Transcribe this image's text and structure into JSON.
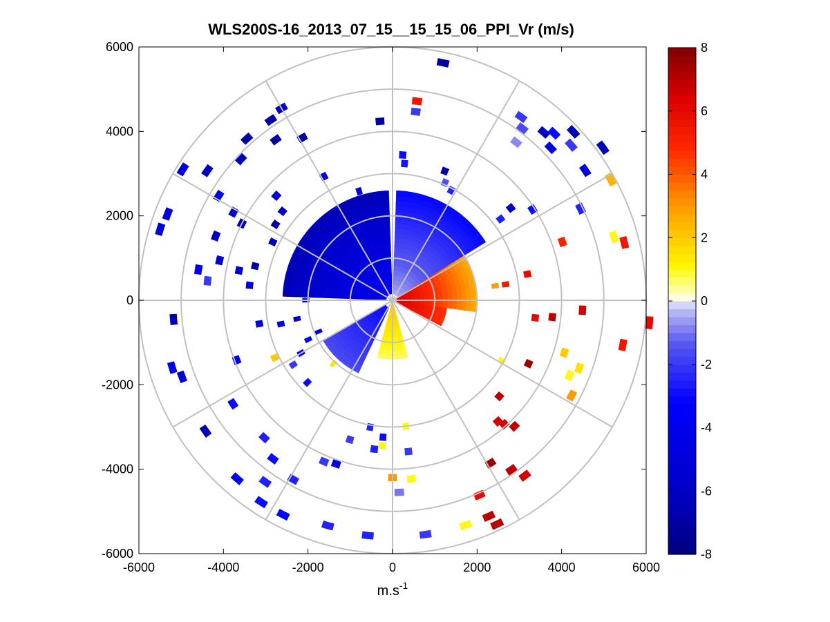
{
  "chart_data": {
    "type": "heatmap",
    "subtype": "polar-ppi",
    "title": "WLS200S-16_2013_07_15__15_15_06_PPI_Vr (m/s)",
    "xlabel": "m.s",
    "xlabel_superscript": "-1",
    "ylabel": "",
    "xlim": [
      -6000,
      6000
    ],
    "ylim": [
      -6000,
      6000
    ],
    "x_ticks": [
      "-6000",
      "-4000",
      "-2000",
      "0",
      "2000",
      "4000",
      "6000"
    ],
    "y_ticks": [
      "6000",
      "4000",
      "2000",
      "0",
      "-2000",
      "-4000",
      "-6000"
    ],
    "range_rings_m": [
      1000,
      2000,
      3000,
      4000,
      5000,
      6000
    ],
    "spokes_deg": [
      0,
      30,
      60,
      90,
      120,
      150,
      180,
      210,
      240,
      270,
      300,
      330
    ],
    "colorbar": {
      "range": [
        -8,
        8
      ],
      "ticks": [
        "8",
        "6",
        "4",
        "2",
        "0",
        "-2",
        "-4",
        "-6",
        "-8"
      ],
      "colormap": "blue-white-yellow-red"
    },
    "dense_sectors": [
      {
        "name": "west-northwest",
        "az_from": 272,
        "az_to": 358,
        "r_from": 150,
        "r_to": 2600,
        "v_outer": -6.5,
        "v_inner": -4.0
      },
      {
        "name": "north-northeast",
        "az_from": 2,
        "az_to": 58,
        "r_from": 150,
        "r_to": 2600,
        "v_outer": -3.2,
        "v_inner": -0.6
      },
      {
        "name": "east",
        "az_from": 58,
        "az_to": 98,
        "r_from": 100,
        "r_to": 2000,
        "v_outer": 2.5,
        "v_inner": 6.5
      },
      {
        "name": "east-southeast",
        "az_from": 98,
        "az_to": 118,
        "r_from": 100,
        "r_to": 1300,
        "v_outer": 4.5,
        "v_inner": 6.5
      },
      {
        "name": "south",
        "az_from": 165,
        "az_to": 195,
        "r_from": 100,
        "r_to": 1400,
        "v_outer": 0.6,
        "v_inner": 2.0
      },
      {
        "name": "southwest",
        "az_from": 205,
        "az_to": 240,
        "r_from": 200,
        "r_to": 1900,
        "v_outer": -1.6,
        "v_inner": -3.0
      }
    ],
    "range_gates": [
      {
        "az": 12,
        "r": 5750,
        "v": -7.0
      },
      {
        "az": 7,
        "r": 4750,
        "v": 5.5
      },
      {
        "az": 7,
        "r": 4500,
        "v": -2.0
      },
      {
        "az": 4,
        "r": 3450,
        "v": -3.0
      },
      {
        "az": 5,
        "r": 3250,
        "v": -2.8
      },
      {
        "az": -4,
        "r": 4250,
        "v": -7.0
      },
      {
        "az": 22,
        "r": 3300,
        "v": -7.0
      },
      {
        "az": 24,
        "r": 3050,
        "v": -1.5
      },
      {
        "az": 28,
        "r": 2950,
        "v": -2.5
      },
      {
        "az": 35,
        "r": 5300,
        "v": -2.0
      },
      {
        "az": 37,
        "r": 5100,
        "v": -1.6
      },
      {
        "az": 38,
        "r": 4750,
        "v": -0.8
      },
      {
        "az": 42,
        "r": 5350,
        "v": -6.0
      },
      {
        "az": 44,
        "r": 5500,
        "v": -3.0
      },
      {
        "az": 47,
        "r": 5850,
        "v": -6.5
      },
      {
        "az": 46,
        "r": 5200,
        "v": -5.0
      },
      {
        "az": 49,
        "r": 5600,
        "v": -2.0
      },
      {
        "az": 54,
        "r": 6150,
        "v": -6.5
      },
      {
        "az": 56,
        "r": 5500,
        "v": -5.0
      },
      {
        "az": 52,
        "r": 3550,
        "v": -6.0
      },
      {
        "az": 53,
        "r": 3200,
        "v": -2.5
      },
      {
        "az": 57,
        "r": 3950,
        "v": -3.0
      },
      {
        "az": 61,
        "r": 5900,
        "v": 2.5
      },
      {
        "az": 64,
        "r": 4950,
        "v": -2.5
      },
      {
        "az": 71,
        "r": 4250,
        "v": 5.0
      },
      {
        "az": 74,
        "r": 5450,
        "v": 1.0
      },
      {
        "az": 76,
        "r": 5650,
        "v": 5.5
      },
      {
        "az": 79,
        "r": 3250,
        "v": 6.0
      },
      {
        "az": 82,
        "r": 2700,
        "v": 5.5
      },
      {
        "az": 82,
        "r": 2450,
        "v": 3.0
      },
      {
        "az": 93,
        "r": 4500,
        "v": 6.5
      },
      {
        "az": 96,
        "r": 3800,
        "v": 7.0
      },
      {
        "az": 97,
        "r": 3400,
        "v": 6.0
      },
      {
        "az": 95,
        "r": 6100,
        "v": 6.0
      },
      {
        "az": 101,
        "r": 5550,
        "v": 5.5
      },
      {
        "az": 107,
        "r": 4250,
        "v": 2.0
      },
      {
        "az": 110,
        "r": 4700,
        "v": 1.5
      },
      {
        "az": 113,
        "r": 4550,
        "v": 1.0
      },
      {
        "az": 115,
        "r": 3550,
        "v": 7.5
      },
      {
        "az": 118,
        "r": 4800,
        "v": 3.0
      },
      {
        "az": 119,
        "r": 2950,
        "v": 1.0
      },
      {
        "az": 132,
        "r": 3400,
        "v": 7.0
      },
      {
        "az": 136,
        "r": 4150,
        "v": 7.0
      },
      {
        "az": 138,
        "r": 3950,
        "v": 6.5
      },
      {
        "az": 139,
        "r": 3800,
        "v": 6.5
      },
      {
        "az": 143,
        "r": 5200,
        "v": 6.5
      },
      {
        "az": 145,
        "r": 4900,
        "v": 7.0
      },
      {
        "az": 149,
        "r": 4500,
        "v": 7.5
      },
      {
        "az": 155,
        "r": 5850,
        "v": 7.0
      },
      {
        "az": 156,
        "r": 5600,
        "v": 7.0
      },
      {
        "az": 156,
        "r": 5050,
        "v": 6.0
      },
      {
        "az": 162,
        "r": 5600,
        "v": 1.0
      },
      {
        "az": 174,
        "r": 4250,
        "v": 1.0
      },
      {
        "az": 174,
        "r": 3000,
        "v": 1.0
      },
      {
        "az": 174,
        "r": 3600,
        "v": -2.0
      },
      {
        "az": 172,
        "r": 5600,
        "v": -2.0
      },
      {
        "az": 180,
        "r": 4200,
        "v": 3.0
      },
      {
        "az": 178,
        "r": 4550,
        "v": -1.0
      },
      {
        "az": 184,
        "r": 3250,
        "v": -3.0
      },
      {
        "az": 184,
        "r": 3450,
        "v": 1.0
      },
      {
        "az": 187,
        "r": 3550,
        "v": -2.5
      },
      {
        "az": 190,
        "r": 3050,
        "v": -2.5
      },
      {
        "az": 186,
        "r": 5600,
        "v": -2.5
      },
      {
        "az": 196,
        "r": 5550,
        "v": -2.5
      },
      {
        "az": 197,
        "r": 3450,
        "v": -2.0
      },
      {
        "az": 199,
        "r": 4100,
        "v": -4.5
      },
      {
        "az": 203,
        "r": 4150,
        "v": -2.0
      },
      {
        "az": 207,
        "r": 5700,
        "v": -3.5
      },
      {
        "az": 209,
        "r": 4850,
        "v": -2.5
      },
      {
        "az": 213,
        "r": 5700,
        "v": -3.0
      },
      {
        "az": 215,
        "r": 5250,
        "v": -2.5
      },
      {
        "az": 217,
        "r": 4700,
        "v": -3.0
      },
      {
        "az": 221,
        "r": 5600,
        "v": -3.5
      },
      {
        "az": 223,
        "r": 4450,
        "v": -2.5
      },
      {
        "az": 223,
        "r": 2050,
        "v": 1.5
      },
      {
        "az": 226,
        "r": 2800,
        "v": -3.0
      },
      {
        "az": 235,
        "r": 5400,
        "v": -6.5
      },
      {
        "az": 237,
        "r": 4500,
        "v": -3.0
      },
      {
        "az": 237,
        "r": 2800,
        "v": -2.0
      },
      {
        "az": 240,
        "r": 2500,
        "v": -3.5
      },
      {
        "az": 244,
        "r": 3100,
        "v": 2.0
      },
      {
        "az": 245,
        "r": 2200,
        "v": -4.0
      },
      {
        "az": 247,
        "r": 1900,
        "v": -5.0
      },
      {
        "az": 249,
        "r": 3950,
        "v": -3.5
      },
      {
        "az": 250,
        "r": 5300,
        "v": -5.5
      },
      {
        "az": 253,
        "r": 5450,
        "v": -4.0
      },
      {
        "az": 258,
        "r": 2700,
        "v": -4.5
      },
      {
        "az": 259,
        "r": 2300,
        "v": -4.5
      },
      {
        "az": 260,
        "r": 3200,
        "v": -5.0
      },
      {
        "az": 265,
        "r": 5200,
        "v": -6.5
      },
      {
        "az": 270,
        "r": 2050,
        "v": -4.0
      },
      {
        "az": 276,
        "r": 3400,
        "v": -5.0
      },
      {
        "az": 276,
        "r": 4400,
        "v": -2.0
      },
      {
        "az": 279,
        "r": 4650,
        "v": -4.5
      },
      {
        "az": 281,
        "r": 3700,
        "v": -5.5
      },
      {
        "az": 283,
        "r": 4200,
        "v": -5.5
      },
      {
        "az": 284,
        "r": 3350,
        "v": -7.0
      },
      {
        "az": 287,
        "r": 5750,
        "v": -5.0
      },
      {
        "az": 290,
        "r": 4450,
        "v": -6.0
      },
      {
        "az": 291,
        "r": 5700,
        "v": -5.0
      },
      {
        "az": 297,
        "r": 4000,
        "v": -6.5
      },
      {
        "az": 296,
        "r": 3150,
        "v": -6.5
      },
      {
        "az": 299,
        "r": 4300,
        "v": -6.0
      },
      {
        "az": 300,
        "r": 2500,
        "v": -6.0
      },
      {
        "az": 301,
        "r": 4800,
        "v": -5.0
      },
      {
        "az": 302,
        "r": 5850,
        "v": -5.0
      },
      {
        "az": 303,
        "r": 3300,
        "v": -7.0
      },
      {
        "az": 305,
        "r": 5350,
        "v": -6.0
      },
      {
        "az": 309,
        "r": 3350,
        "v": -6.0
      },
      {
        "az": 312,
        "r": 3700,
        "v": -5.5
      },
      {
        "az": 313,
        "r": 4900,
        "v": -6.5
      },
      {
        "az": 318,
        "r": 5150,
        "v": -7.0
      },
      {
        "az": 324,
        "r": 4700,
        "v": -7.0
      },
      {
        "az": 326,
        "r": 5150,
        "v": -7.0
      },
      {
        "az": 330,
        "r": 5250,
        "v": -6.0
      },
      {
        "az": 331,
        "r": 4400,
        "v": -7.0
      },
      {
        "az": 331,
        "r": 3350,
        "v": -5.0
      },
      {
        "az": 336,
        "r": 2200,
        "v": -6.0
      },
      {
        "az": 343,
        "r": 2700,
        "v": -5.0
      }
    ]
  }
}
